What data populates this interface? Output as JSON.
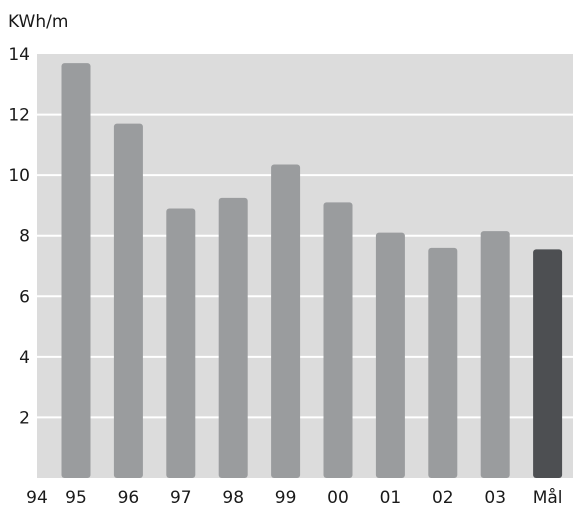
{
  "chart_data": {
    "type": "bar",
    "title": "",
    "unit_label": "KWh/m",
    "xlabel": "",
    "ylabel": "",
    "x_tick_labels": [
      "94",
      "95",
      "96",
      "97",
      "98",
      "99",
      "00",
      "01",
      "02",
      "03",
      "Mål"
    ],
    "categories": [
      "95",
      "96",
      "97",
      "98",
      "99",
      "00",
      "01",
      "02",
      "03",
      "Mål"
    ],
    "values": [
      13.7,
      11.7,
      8.9,
      9.25,
      10.35,
      9.1,
      8.1,
      7.6,
      8.15,
      7.55
    ],
    "ylim": [
      0,
      14
    ],
    "yticks": [
      2,
      4,
      6,
      8,
      10,
      12,
      14
    ],
    "grid": true,
    "colors": {
      "background": "#dcdcdc",
      "bar": "#9a9c9e",
      "target_bar": "#4d4f52",
      "grid": "#ffffff",
      "text": "#1a1a1a"
    }
  }
}
